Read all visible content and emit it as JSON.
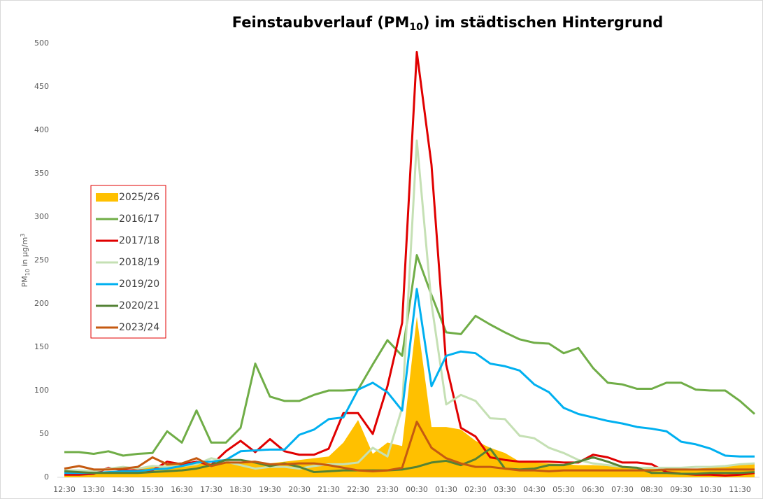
{
  "chart_data": {
    "type": "line",
    "title": [
      "Feinstaubverlauf (PM",
      "10",
      ") im städtischen Hintergrund"
    ],
    "y_label": [
      "PM",
      "10",
      " in µg/m",
      "3"
    ],
    "categories": [
      "12:30",
      null,
      "13:30",
      null,
      "14:30",
      null,
      "15:30",
      null,
      "16:30",
      null,
      "17:30",
      null,
      "18:30",
      null,
      "19:30",
      null,
      "20:30",
      null,
      "21:30",
      null,
      "22:30",
      null,
      "23:30",
      null,
      "00:30",
      null,
      "01:30",
      null,
      "02:30",
      null,
      "03:30",
      null,
      "04:30",
      null,
      "05:30",
      null,
      "06:30",
      null,
      "07:30",
      null,
      "08:30",
      null,
      "09:30",
      null,
      "10:30",
      null,
      "11:30",
      null
    ],
    "ylim": [
      0,
      500
    ],
    "yticks": [
      0,
      50,
      100,
      150,
      200,
      250,
      300,
      350,
      400,
      450,
      500
    ],
    "legend": "center left",
    "series": [
      {
        "name": "2025/26",
        "color": "#ffc000",
        "area": true,
        "values": [
          3,
          3,
          5,
          6,
          8,
          10,
          12,
          14,
          15,
          17,
          16,
          16,
          18,
          18,
          16,
          18,
          20,
          22,
          24,
          40,
          66,
          27,
          40,
          36,
          185,
          58,
          58,
          55,
          42,
          34,
          28,
          18,
          17,
          16,
          15,
          14,
          14,
          13,
          12,
          11,
          10,
          9,
          9,
          10,
          11,
          12,
          14,
          15
        ]
      },
      {
        "name": "2016/17",
        "color": "#70ad47",
        "values": [
          29,
          29,
          27,
          30,
          25,
          27,
          28,
          53,
          40,
          77,
          40,
          40,
          57,
          131,
          93,
          88,
          88,
          95,
          100,
          100,
          101,
          130,
          158,
          140,
          256,
          210,
          167,
          165,
          186,
          176,
          167,
          159,
          155,
          154,
          143,
          149,
          126,
          109,
          107,
          102,
          102,
          109,
          109,
          101,
          100,
          100,
          88,
          73
        ]
      },
      {
        "name": "2017/18",
        "color": "#e00000",
        "values": [
          3,
          3,
          4,
          11,
          8,
          8,
          8,
          18,
          15,
          18,
          14,
          30,
          42,
          29,
          44,
          30,
          26,
          26,
          33,
          74,
          74,
          50,
          105,
          178,
          490,
          360,
          130,
          57,
          47,
          23,
          20,
          18,
          18,
          18,
          17,
          17,
          26,
          23,
          17,
          17,
          15,
          6,
          4,
          3,
          3,
          2,
          3,
          5
        ]
      },
      {
        "name": "2018/19",
        "color": "#c5e0b4",
        "values": [
          8,
          8,
          7,
          10,
          12,
          10,
          13,
          12,
          13,
          15,
          22,
          18,
          14,
          10,
          12,
          12,
          10,
          13,
          15,
          15,
          17,
          34,
          24,
          80,
          388,
          200,
          84,
          95,
          88,
          68,
          67,
          48,
          45,
          34,
          28,
          20,
          16,
          14,
          12,
          11,
          11,
          11,
          11,
          12,
          12,
          13,
          15,
          16
        ]
      },
      {
        "name": "2019/20",
        "color": "#00b0f0",
        "values": [
          5,
          5,
          5,
          6,
          7,
          7,
          9,
          10,
          13,
          17,
          18,
          20,
          30,
          31,
          32,
          32,
          49,
          55,
          67,
          69,
          101,
          109,
          98,
          77,
          217,
          105,
          140,
          145,
          143,
          131,
          128,
          123,
          107,
          98,
          80,
          73,
          69,
          65,
          62,
          58,
          56,
          53,
          41,
          38,
          33,
          25,
          24,
          24
        ]
      },
      {
        "name": "2020/21",
        "color": "#548235",
        "values": [
          7,
          6,
          5,
          5,
          5,
          5,
          6,
          7,
          8,
          10,
          14,
          20,
          20,
          17,
          13,
          16,
          12,
          6,
          7,
          8,
          8,
          8,
          8,
          9,
          12,
          17,
          19,
          14,
          21,
          33,
          10,
          9,
          10,
          14,
          14,
          18,
          23,
          18,
          12,
          11,
          5,
          5,
          4,
          4,
          5,
          5,
          5,
          6
        ]
      },
      {
        "name": "2023/24",
        "color": "#c55a11",
        "values": [
          10,
          13,
          9,
          9,
          10,
          12,
          23,
          15,
          16,
          22,
          13,
          17,
          17,
          18,
          15,
          15,
          16,
          16,
          14,
          11,
          8,
          7,
          8,
          11,
          64,
          34,
          22,
          16,
          12,
          12,
          10,
          8,
          8,
          7,
          8,
          8,
          8,
          8,
          8,
          8,
          8,
          9,
          9,
          9,
          9,
          9,
          9,
          9
        ]
      }
    ]
  }
}
